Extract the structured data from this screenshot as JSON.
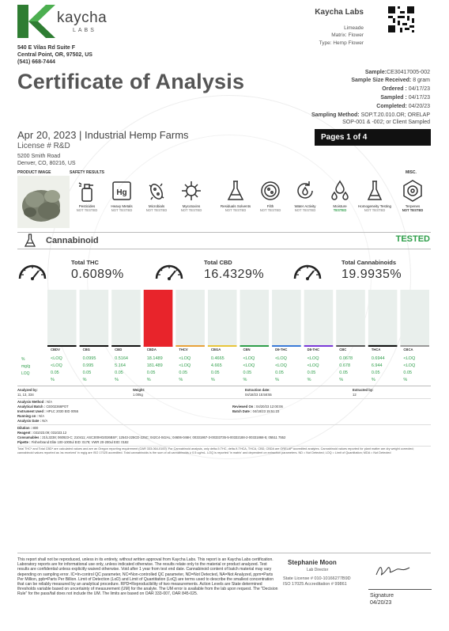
{
  "header": {
    "logo_text": "kaycha",
    "logo_sub": "LABS",
    "address_lines": [
      "540 E Vilas Rd Suite F",
      "Central Point, OR, 97502, US",
      "(541) 668-7444"
    ],
    "lab_name": "Kaycha Labs",
    "lab_lines": [
      "Limeade",
      "Matrix: Flower",
      "Type: Hemp Flower"
    ]
  },
  "title": "Certificate of Analysis",
  "meta": {
    "sample_label": "Sample:",
    "sample_value": "CE30417005-002",
    "size_label": "Sample Size Received:",
    "size_value": "8 gram",
    "ordered_label": "Ordered :",
    "ordered_value": "04/17/23",
    "sampled_label": "Sampled :",
    "sampled_value": "04/17/23",
    "completed_label": "Completed:",
    "completed_value": "04/20/23",
    "method_label": "Sampling Method:",
    "method_value": "SOP.T.20.010.OR; ORELAP",
    "method_value2": "SOP-001 & -002; or Client Sampled"
  },
  "client": {
    "date_line": "Apr 20, 2023 | Industrial Hemp Farms",
    "license": "License # R&D",
    "address_lines": [
      "5200 Smith Road",
      "Denver, CO, 80216, US"
    ]
  },
  "pages_label": "Pages 1 of 4",
  "section_headers": {
    "product_image": "PRODUCT IMAGE",
    "safety": "SAFETY RESULTS",
    "misc": "MISC."
  },
  "safety": [
    {
      "label": "Pesticides",
      "status": "NOT TESTED",
      "icon": "spray-bottle-icon"
    },
    {
      "label": "Heavy Metals",
      "status": "NOT TESTED",
      "icon": "heavy-metals-icon"
    },
    {
      "label": "Microbials",
      "status": "NOT TESTED",
      "icon": "microbe-icon"
    },
    {
      "label": "Mycotoxins",
      "status": "NOT TESTED",
      "icon": "virus-icon"
    },
    {
      "label": "Residuals Solvents",
      "status": "NOT TESTED",
      "icon": "flask-icon"
    },
    {
      "label": "Filth",
      "status": "NOT TESTED",
      "icon": "petri-dish-icon"
    },
    {
      "label": "Water Activity",
      "status": "NOT TESTED",
      "icon": "water-cycle-icon"
    },
    {
      "label": "Moisture",
      "status": "TESTED",
      "icon": "droplets-icon"
    },
    {
      "label": "Homogeneity Testing",
      "status": "NOT TESTED",
      "icon": "test-tube-icon"
    }
  ],
  "misc": {
    "label": "Terpenes",
    "status": "NOT TESTED",
    "icon": "terpene-icon"
  },
  "cannabinoid": {
    "label": "Cannabinoid",
    "status": "TESTED"
  },
  "totals": [
    {
      "label": "Total THC",
      "value": "0.6089%"
    },
    {
      "label": "Total CBD",
      "value": "16.4329%"
    },
    {
      "label": "Total Cannabinoids",
      "value": "19.9935%"
    }
  ],
  "row_labels": [
    "%",
    "mg/g",
    "LOQ",
    ""
  ],
  "chart_data": {
    "type": "bar",
    "categories": [
      "CBDV",
      "CBG",
      "CBD",
      "CBDA",
      "THCV",
      "CBGA",
      "CBN",
      "D9-THC",
      "D8-THC",
      "CBC",
      "THCA",
      "CBCA"
    ],
    "percent": [
      "<LOQ",
      "0.0995",
      "0.5164",
      "18.1489",
      "<LOQ",
      "0.4665",
      "<LOQ",
      "<LOQ",
      "<LOQ",
      "0.0678",
      "0.6944",
      "<LOQ"
    ],
    "mg_g": [
      "<LOQ",
      "0.995",
      "5.164",
      "181.489",
      "<LOQ",
      "4.665",
      "<LOQ",
      "<LOQ",
      "<LOQ",
      "0.678",
      "6.944",
      "<LOQ"
    ],
    "loq": [
      "0.05",
      "0.05",
      "0.05",
      "0.05",
      "0.05",
      "0.05",
      "0.05",
      "0.05",
      "0.05",
      "0.05",
      "0.05",
      "0.05"
    ],
    "unit": [
      "%",
      "%",
      "%",
      "%",
      "%",
      "%",
      "%",
      "%",
      "%",
      "%",
      "%",
      "%"
    ],
    "values": [
      0,
      0.0995,
      0.5164,
      18.1489,
      0,
      0.4665,
      0,
      0,
      0,
      0.0678,
      0.6944,
      0
    ],
    "highlight_color": "#e8242b",
    "cap_colors": [
      "#111111",
      "#111111",
      "#111111",
      "#e8242b",
      "#e8a23a",
      "#e8c53a",
      "#2e9e4a",
      "#3a7ad8",
      "#7a3ad8",
      "#555555",
      "#111111",
      "#999999"
    ],
    "ylim": [
      0,
      18.1489
    ]
  },
  "analysis": {
    "analyzed_by_label": "Analyzed by:",
    "analyzed_by": "11, 13, 334",
    "weight_label": "Weight:",
    "weight": "1.005g",
    "extraction_date_label": "Extraction date:",
    "extraction_date": "04/18/23 15:58:55",
    "extracted_by_label": "Extracted by:",
    "extracted_by": "12",
    "method_label": "Analysis Method :",
    "method": "N/A",
    "batch_label": "Analytical Batch :",
    "batch": "CE002366POT",
    "instrument_label": "Instrument Used :",
    "instrument": "HPLC 2030 EID 0055",
    "running_label": "Running on :",
    "running": "N/A",
    "analysis_date_label": "Analysis Date :",
    "analysis_date": "N/A",
    "reviewed_label": "Reviewed On :",
    "reviewed": "04/20/23 12:00:06",
    "batch_date_label": "Batch Date :",
    "batch_date": "04/18/23 15:51:23",
    "dilution_label": "Dilution :",
    "dilution": "800",
    "reagent_label": "Reagent :",
    "reagent": "031023.09; 031023.12",
    "consumables_label": "Consumables :",
    "consumables": "21/L3238; 060923-C; 210411; ASC300H02026BSF; 12543-225CD-225C; 042C4-042AL; 04606-046H; 00331867-3-00333735-5-00332188-2-00331868-5; 05511 7552",
    "pipette_label": "Pipette :",
    "pipette": "Fisherbrand Elite 100-1000ul EID: 0179; VWR 20-200ul EID: 0182",
    "footnote": "Total THC* and Total CBD* are calculated values and are an Oregon reporting requirement (OAR 333-064-0100). For Cannabinoid analysis, only delta-9-THC, delta-9-THCA, THCA, CBD, CBDA are ORELAP accredited analytes. Cannabinoid values reported for plant matter are dry weight corrected; cannabinoid values reported as 'as received' in mg/g are ISO 17025 accredited. Total cannabinoids is the sum of all cannabinoids ≥ 0.5 ug/mL. LOQ is reported 'in matrix' and dependent on extraction parameters. ND = Not Detected; LOQ = Limit of Quantitation; MDA = Not Detected"
  },
  "footer": {
    "disclaimer": "This report shall not be reproduced, unless in its entirety, without written approval from Kaycha Labs. This report is an Kaycha Labs certification. Laboratory reports are for informational use only, unless indicated otherwise. The results relate only to the material or product analyzed. Test results are confidential unless explicitly waived otherwise. Void after 1 year from test end date. Cannabinoid content of batch material may vary depending on sampling error. IC=In-control QC parameter, NC=Non-controlled QC parameter, ND=Not Detected, NA=Not Analyzed, ppm=Parts Per Million, ppb=Parts Per Billion. Limit of Detection (LoD) and Limit of Quantitation (LoQ) are terms used to describe the smallest concentration that can be reliably measured by an analytical procedure. RPD=Reproducibility of two measurements. Action Levels are State determined thresholds variable based on uncertainty of measurement (UM) for the analyte. The UM error is available from the lab upon request. The \"Decision Rule\" for the pass/fail does not include the UM. The limits are based on OAR 333-007, OAR 845-025.",
    "signer_name": "Stephanie Moon",
    "signer_title": "Lab Director",
    "license_lines": [
      "State License # 010-10166277B9D",
      "ISO 17025 Accreditation # 99861"
    ],
    "signature_label": "Signature",
    "signature_date": "04/20/23"
  }
}
